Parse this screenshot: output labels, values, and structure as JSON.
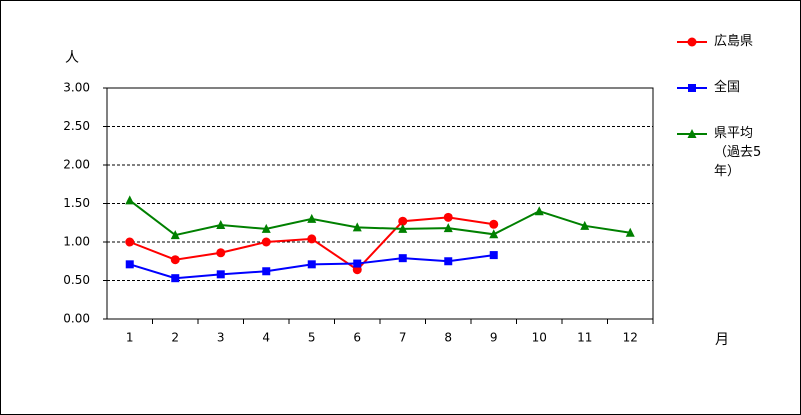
{
  "chart_data": {
    "type": "line",
    "y_unit_label": "人",
    "x_unit_label": "月",
    "categories": [
      "1",
      "2",
      "3",
      "4",
      "5",
      "6",
      "7",
      "8",
      "9",
      "10",
      "11",
      "12"
    ],
    "series": [
      {
        "name": "広島県",
        "color": "#ff0000",
        "marker": "circle",
        "values": [
          1.0,
          0.77,
          0.86,
          1.0,
          1.04,
          0.64,
          1.27,
          1.32,
          1.23,
          null,
          null,
          null
        ]
      },
      {
        "name": "全国",
        "color": "#0000ff",
        "marker": "square",
        "values": [
          0.71,
          0.53,
          0.58,
          0.62,
          0.71,
          0.72,
          0.79,
          0.75,
          0.83,
          null,
          null,
          null
        ]
      },
      {
        "name": "県平均（過去5年）",
        "color": "#008000",
        "marker": "triangle",
        "values": [
          1.54,
          1.09,
          1.22,
          1.17,
          1.3,
          1.19,
          1.17,
          1.18,
          1.1,
          1.4,
          1.21,
          1.12
        ]
      }
    ],
    "ylim": [
      0,
      3
    ],
    "yticks": [
      {
        "value": 0,
        "label": "0.00"
      },
      {
        "value": 0.5,
        "label": "0.50"
      },
      {
        "value": 1,
        "label": "1.00"
      },
      {
        "value": 1.5,
        "label": "1.50"
      },
      {
        "value": 2,
        "label": "2.00"
      },
      {
        "value": 2.5,
        "label": "2.50"
      },
      {
        "value": 3,
        "label": "3.00"
      }
    ],
    "grid": true,
    "legend": "right"
  }
}
